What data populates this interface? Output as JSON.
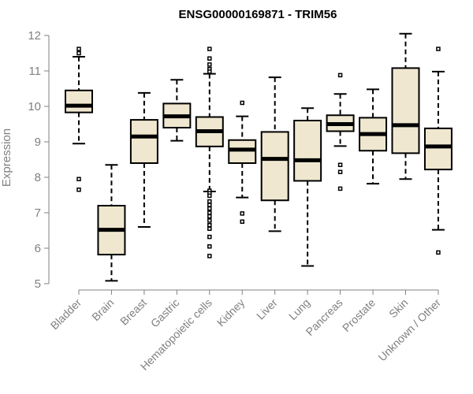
{
  "chart_data": {
    "type": "boxplot",
    "title": "ENSG00000169871 - TRIM56",
    "xlabel": "",
    "ylabel": "Expression",
    "ylim": [
      5,
      12
    ],
    "yticks": [
      5,
      6,
      7,
      8,
      9,
      10,
      11,
      12
    ],
    "grid": false,
    "legend": "none",
    "colors": {
      "box_fill": "#efe7cf",
      "stroke": "#000000",
      "axis_text": "#808080"
    },
    "categories": [
      "Bladder",
      "Brain",
      "Breast",
      "Gastric",
      "Hematopoietic cells",
      "Kidney",
      "Liver",
      "Lung",
      "Pancreas",
      "Prostate",
      "Skin",
      "Unknown / Other"
    ],
    "boxes": [
      {
        "category": "Bladder",
        "whisker_low": 8.95,
        "q1": 9.83,
        "median": 10.02,
        "q3": 10.45,
        "whisker_high": 11.4,
        "outliers": [
          11.62,
          11.5,
          7.95,
          7.65
        ]
      },
      {
        "category": "Brain",
        "whisker_low": 5.08,
        "q1": 5.82,
        "median": 6.52,
        "q3": 7.2,
        "whisker_high": 8.35,
        "outliers": []
      },
      {
        "category": "Breast",
        "whisker_low": 6.6,
        "q1": 8.4,
        "median": 9.15,
        "q3": 9.62,
        "whisker_high": 10.38,
        "outliers": []
      },
      {
        "category": "Gastric",
        "whisker_low": 9.03,
        "q1": 9.4,
        "median": 9.72,
        "q3": 10.08,
        "whisker_high": 10.75,
        "outliers": []
      },
      {
        "category": "Hematopoietic cells",
        "whisker_low": 7.6,
        "q1": 8.87,
        "median": 9.3,
        "q3": 9.7,
        "whisker_high": 10.92,
        "outliers": [
          11.62,
          11.35,
          11.18,
          11.05,
          10.98,
          7.62,
          7.55,
          7.48,
          7.32,
          7.22,
          7.12,
          7.0,
          6.9,
          6.78,
          6.65,
          6.55,
          6.32,
          6.05,
          5.78
        ]
      },
      {
        "category": "Kidney",
        "whisker_low": 7.43,
        "q1": 8.4,
        "median": 8.78,
        "q3": 9.05,
        "whisker_high": 9.72,
        "outliers": [
          10.1,
          6.98,
          6.75
        ]
      },
      {
        "category": "Liver",
        "whisker_low": 6.48,
        "q1": 7.35,
        "median": 8.52,
        "q3": 9.28,
        "whisker_high": 10.82,
        "outliers": []
      },
      {
        "category": "Lung",
        "whisker_low": 5.5,
        "q1": 7.9,
        "median": 8.48,
        "q3": 9.6,
        "whisker_high": 9.95,
        "outliers": []
      },
      {
        "category": "Pancreas",
        "whisker_low": 8.88,
        "q1": 9.3,
        "median": 9.5,
        "q3": 9.75,
        "whisker_high": 10.35,
        "outliers": [
          10.88,
          8.35,
          8.15,
          7.68
        ]
      },
      {
        "category": "Prostate",
        "whisker_low": 7.82,
        "q1": 8.75,
        "median": 9.22,
        "q3": 9.68,
        "whisker_high": 10.48,
        "outliers": []
      },
      {
        "category": "Skin",
        "whisker_low": 7.95,
        "q1": 8.68,
        "median": 9.47,
        "q3": 11.08,
        "whisker_high": 12.05,
        "outliers": []
      },
      {
        "category": "Unknown / Other",
        "whisker_low": 6.52,
        "q1": 8.22,
        "median": 8.87,
        "q3": 9.38,
        "whisker_high": 10.98,
        "outliers": [
          11.62,
          5.88
        ]
      }
    ]
  }
}
